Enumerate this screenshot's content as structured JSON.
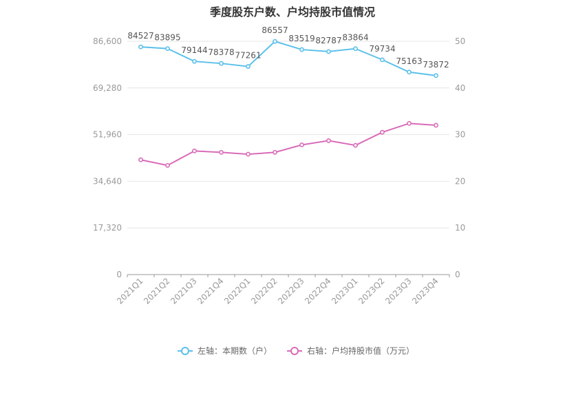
{
  "chart_data": {
    "type": "line",
    "title": "季度股东户数、户均持股市值情况",
    "categories": [
      "2021Q1",
      "2021Q2",
      "2021Q3",
      "2021Q4",
      "2022Q1",
      "2022Q2",
      "2022Q3",
      "2022Q4",
      "2023Q1",
      "2023Q2",
      "2023Q3",
      "2023Q4"
    ],
    "left_axis": {
      "min": 0,
      "max": 86600,
      "ticks": [
        "0",
        "17,320",
        "34,640",
        "51,960",
        "69,280",
        "86,600"
      ]
    },
    "right_axis": {
      "min": 0,
      "max": 50,
      "ticks": [
        "0",
        "10",
        "20",
        "30",
        "40",
        "50"
      ]
    },
    "series": [
      {
        "name": "左轴：本期数（户）",
        "axis": "left",
        "color": "#5bc0eb",
        "values": [
          84527,
          83895,
          79144,
          78378,
          77261,
          86557,
          83519,
          82787,
          83864,
          79734,
          75163,
          73872
        ],
        "labels": [
          "84527",
          "83895",
          "79144",
          "78378",
          "77261",
          "86557",
          "83519",
          "82787",
          "83864",
          "79734",
          "75163",
          "73872"
        ]
      },
      {
        "name": "右轴：户均持股市值（万元）",
        "axis": "right",
        "color": "#d96bb8",
        "values": [
          24.6,
          23.4,
          26.5,
          26.2,
          25.8,
          26.2,
          27.8,
          28.7,
          27.7,
          30.5,
          32.4,
          32.0
        ]
      }
    ],
    "grid": true,
    "legend_position": "bottom-center"
  }
}
